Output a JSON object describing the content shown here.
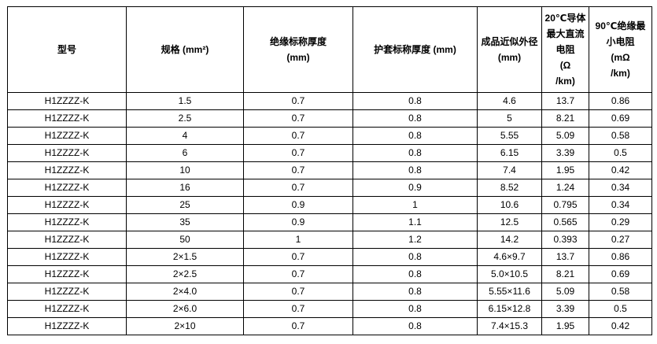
{
  "colors": {
    "background": "#ffffff",
    "border": "#000000",
    "text": "#000000"
  },
  "table": {
    "headers": [
      {
        "label": "型号"
      },
      {
        "label": "规格 (mm²)"
      },
      {
        "label": "绝缘标称厚度\n(mm)"
      },
      {
        "label": "护套标称厚度 (mm)"
      },
      {
        "label": "成品近似外径\n(mm)"
      },
      {
        "label": "20℃导体\n最大直流\n电阻\n(Ω\n/km)"
      },
      {
        "label": "90℃绝缘最\n小电阻\n(mΩ\n/km)"
      }
    ],
    "rows": [
      [
        "H1ZZZZ-K",
        "1.5",
        "0.7",
        "0.8",
        "4.6",
        "13.7",
        "0.86"
      ],
      [
        "H1ZZZZ-K",
        "2.5",
        "0.7",
        "0.8",
        "5",
        "8.21",
        "0.69"
      ],
      [
        "H1ZZZZ-K",
        "4",
        "0.7",
        "0.8",
        "5.55",
        "5.09",
        "0.58"
      ],
      [
        "H1ZZZZ-K",
        "6",
        "0.7",
        "0.8",
        "6.15",
        "3.39",
        "0.5"
      ],
      [
        "H1ZZZZ-K",
        "10",
        "0.7",
        "0.8",
        "7.4",
        "1.95",
        "0.42"
      ],
      [
        "H1ZZZZ-K",
        "16",
        "0.7",
        "0.9",
        "8.52",
        "1.24",
        "0.34"
      ],
      [
        "H1ZZZZ-K",
        "25",
        "0.9",
        "1",
        "10.6",
        "0.795",
        "0.34"
      ],
      [
        "H1ZZZZ-K",
        "35",
        "0.9",
        "1.1",
        "12.5",
        "0.565",
        "0.29"
      ],
      [
        "H1ZZZZ-K",
        "50",
        "1",
        "1.2",
        "14.2",
        "0.393",
        "0.27"
      ],
      [
        "H1ZZZZ-K",
        "2×1.5",
        "0.7",
        "0.8",
        "4.6×9.7",
        "13.7",
        "0.86"
      ],
      [
        "H1ZZZZ-K",
        "2×2.5",
        "0.7",
        "0.8",
        "5.0×10.5",
        "8.21",
        "0.69"
      ],
      [
        "H1ZZZZ-K",
        "2×4.0",
        "0.7",
        "0.8",
        "5.55×11.6",
        "5.09",
        "0.58"
      ],
      [
        "H1ZZZZ-K",
        "2×6.0",
        "0.7",
        "0.8",
        "6.15×12.8",
        "3.39",
        "0.5"
      ],
      [
        "H1ZZZZ-K",
        "2×10",
        "0.7",
        "0.8",
        "7.4×15.3",
        "1.95",
        "0.42"
      ]
    ]
  }
}
